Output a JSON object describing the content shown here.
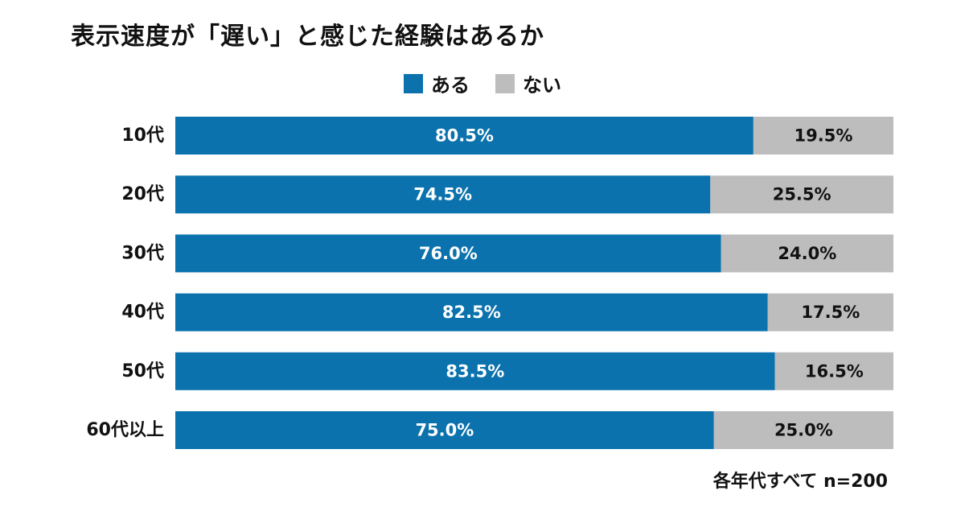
{
  "title": "表示速度が「遅い」と感じた経験はあるか",
  "legend": {
    "ari": "ある",
    "nai": "ない"
  },
  "note": "各年代すべて n=200",
  "colors": {
    "ari": "#0b72ad",
    "nai": "#bdbdbd",
    "ari_text": "#ffffff",
    "nai_text": "#111111"
  },
  "chart_data": {
    "type": "bar",
    "orientation": "horizontal",
    "stacked": true,
    "categories": [
      "10代",
      "20代",
      "30代",
      "40代",
      "50代",
      "60代以上"
    ],
    "series": [
      {
        "name": "ある",
        "values": [
          80.5,
          74.5,
          76.0,
          82.5,
          83.5,
          75.0
        ]
      },
      {
        "name": "ない",
        "values": [
          19.5,
          25.5,
          24.0,
          17.5,
          16.5,
          25.0
        ]
      }
    ],
    "data_labels": [
      [
        "80.5%",
        "74.5%",
        "76.0%",
        "82.5%",
        "83.5%",
        "75.0%"
      ],
      [
        "19.5%",
        "25.5%",
        "24.0%",
        "17.5%",
        "16.5%",
        "25.0%"
      ]
    ],
    "xlim": [
      0,
      100
    ],
    "legend_position": "top-center",
    "grid": false
  }
}
